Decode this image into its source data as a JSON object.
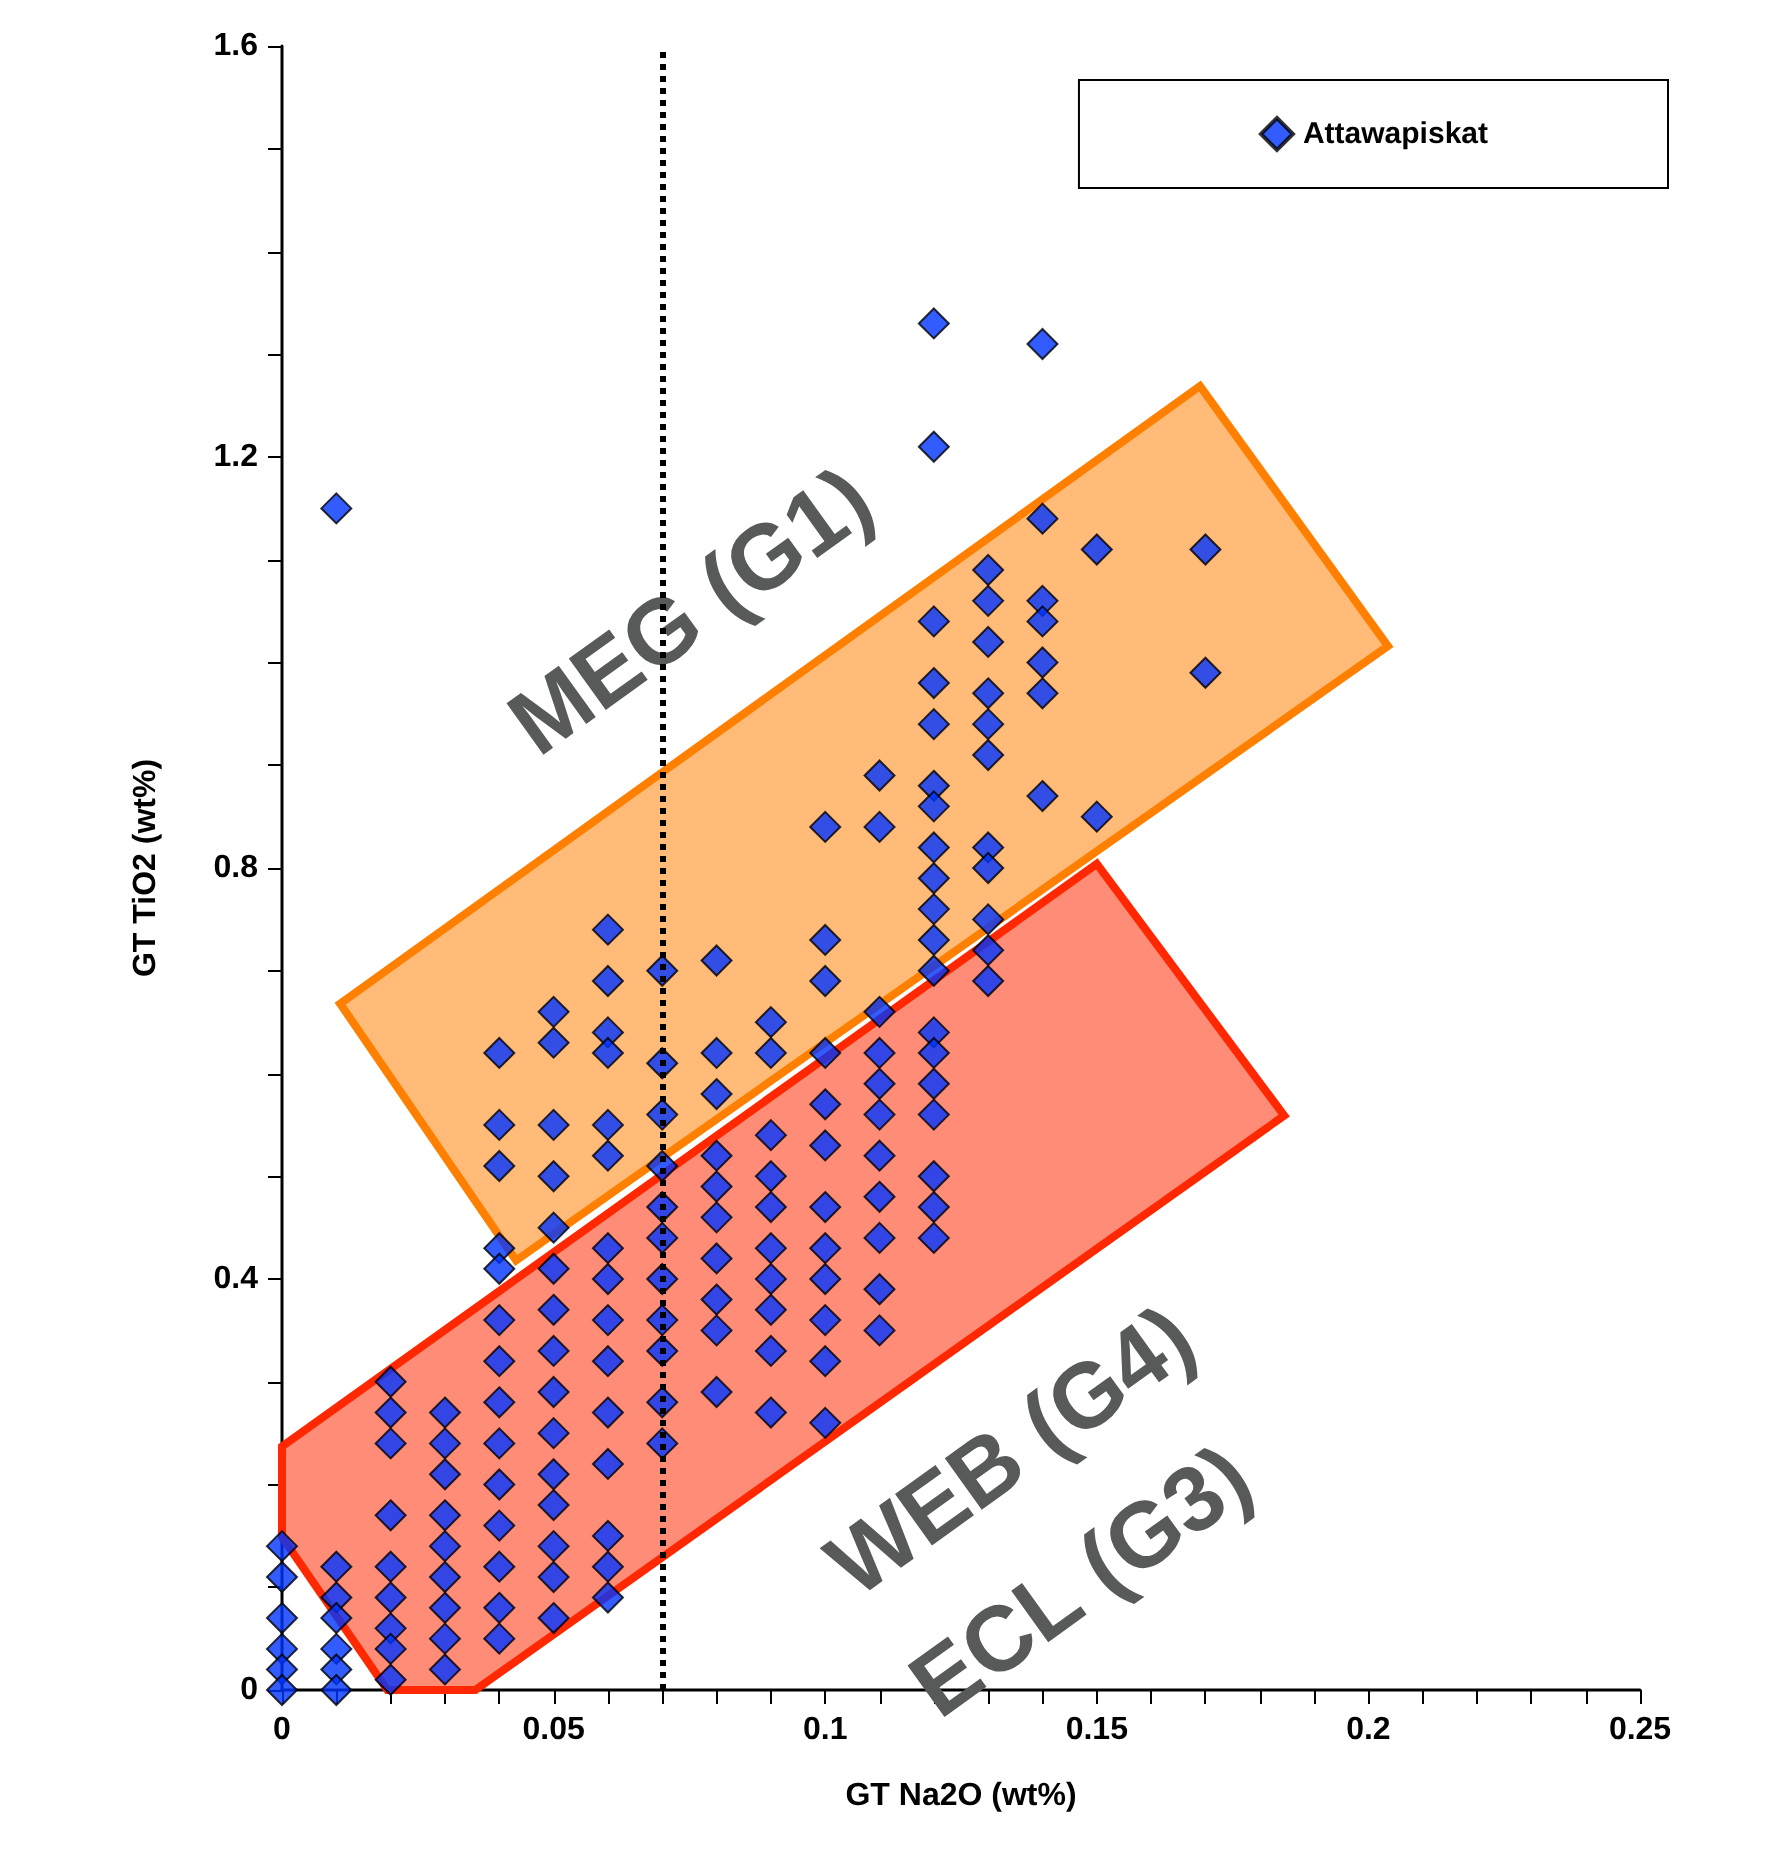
{
  "chart_data": {
    "type": "scatter",
    "xlabel": "GT Na2O (wt%)",
    "ylabel": "GT TiO2 (wt%)",
    "xlim": [
      0,
      0.25
    ],
    "ylim": [
      0,
      1.6
    ],
    "xticks": [
      0,
      {
        "value": 0.01,
        "label": null
      },
      {
        "value": 0.02,
        "label": null
      },
      {
        "value": 0.03,
        "label": null
      },
      {
        "value": 0.04,
        "label": null
      },
      0.05,
      {
        "value": 0.06,
        "label": null
      },
      {
        "value": 0.07,
        "label": null
      },
      {
        "value": 0.08,
        "label": null
      },
      {
        "value": 0.09,
        "label": null
      },
      0.1,
      {
        "value": 0.11,
        "label": null
      },
      {
        "value": 0.12,
        "label": null
      },
      {
        "value": 0.13,
        "label": null
      },
      {
        "value": 0.14,
        "label": null
      },
      0.15,
      {
        "value": 0.16,
        "label": null
      },
      {
        "value": 0.17,
        "label": null
      },
      {
        "value": 0.18,
        "label": null
      },
      {
        "value": 0.19,
        "label": null
      },
      0.2,
      {
        "value": 0.21,
        "label": null
      },
      {
        "value": 0.22,
        "label": null
      },
      {
        "value": 0.23,
        "label": null
      },
      {
        "value": 0.24,
        "label": null
      },
      0.25
    ],
    "yticks": [
      0,
      {
        "value": 0.1,
        "label": null
      },
      {
        "value": 0.2,
        "label": null
      },
      {
        "value": 0.3,
        "label": null
      },
      0.4,
      {
        "value": 0.5,
        "label": null
      },
      {
        "value": 0.6,
        "label": null
      },
      {
        "value": 0.7,
        "label": null
      },
      0.8,
      {
        "value": 0.9,
        "label": null
      },
      {
        "value": 1.0,
        "label": null
      },
      {
        "value": 1.1,
        "label": null
      },
      1.2,
      {
        "value": 1.3,
        "label": null
      },
      {
        "value": 1.4,
        "label": null
      },
      {
        "value": 1.5,
        "label": null
      },
      1.6
    ],
    "grid": false,
    "legend": "top right",
    "ref_lines": [
      {
        "axis": "x",
        "value": 0.07,
        "label": null,
        "color": "#000000",
        "line_style": "dotted"
      }
    ],
    "annotations": [
      "MEG (G1)",
      "WEB (G4)",
      "ECL (G3)"
    ],
    "series": [
      {
        "type": "area",
        "marker": "none",
        "color": "#ff8000",
        "x": [
          0.0107,
          0.169,
          0.2036,
          0.0431
        ],
        "values": [
          0.668,
          1.269,
          1.016,
          0.418
        ]
      },
      {
        "type": "area",
        "marker": "none",
        "color": "#ff2800",
        "x": [
          0,
          0.15,
          0.1845,
          0.0356,
          0.0194,
          0
        ],
        "values": [
          0.237,
          0.804,
          0.559,
          0,
          0,
          0.149
        ]
      },
      {
        "name": "Attawapiskat",
        "marker": "diamond",
        "color": "#0033ff",
        "x": [
          0.01,
          0.12,
          0.12,
          0.14,
          0.15,
          0.14,
          0.14,
          0.14,
          0.14,
          0.14,
          0.14,
          0.15,
          0.17,
          0.17,
          0.13,
          0.13,
          0.13,
          0.13,
          0.13,
          0.13,
          0.13,
          0.13,
          0.13,
          0.13,
          0.13,
          0.12,
          0.12,
          0.12,
          0.12,
          0.12,
          0.12,
          0.12,
          0.12,
          0.12,
          0.12,
          0.12,
          0.12,
          0.12,
          0.12,
          0.12,
          0.12,
          0.12,
          0.11,
          0.11,
          0.11,
          0.11,
          0.11,
          0.11,
          0.11,
          0.11,
          0.11,
          0.11,
          0.11,
          0.1,
          0.1,
          0.1,
          0.1,
          0.1,
          0.1,
          0.1,
          0.1,
          0.1,
          0.1,
          0.1,
          0.1,
          0.09,
          0.09,
          0.09,
          0.09,
          0.09,
          0.09,
          0.09,
          0.09,
          0.09,
          0.09,
          0.08,
          0.08,
          0.08,
          0.08,
          0.08,
          0.08,
          0.08,
          0.08,
          0.08,
          0.08,
          0.07,
          0.07,
          0.07,
          0.07,
          0.07,
          0.07,
          0.07,
          0.07,
          0.07,
          0.07,
          0.07,
          0.06,
          0.06,
          0.06,
          0.06,
          0.06,
          0.06,
          0.06,
          0.06,
          0.06,
          0.06,
          0.06,
          0.06,
          0.06,
          0.06,
          0.06,
          0.05,
          0.05,
          0.05,
          0.05,
          0.05,
          0.05,
          0.05,
          0.05,
          0.05,
          0.05,
          0.05,
          0.05,
          0.05,
          0.05,
          0.05,
          0.04,
          0.04,
          0.04,
          0.04,
          0.04,
          0.04,
          0.04,
          0.04,
          0.04,
          0.04,
          0.04,
          0.04,
          0.04,
          0.04,
          0.03,
          0.03,
          0.03,
          0.03,
          0.03,
          0.03,
          0.03,
          0.03,
          0.03,
          0.02,
          0.02,
          0.02,
          0.02,
          0.02,
          0.02,
          0.02,
          0.02,
          0.02,
          0.01,
          0.01,
          0.01,
          0.01,
          0.01,
          0.01,
          0,
          0,
          0,
          0,
          0,
          0
        ],
        "values": [
          1.15,
          1.33,
          1.21,
          1.31,
          0.85,
          1.14,
          1.06,
          1.04,
          1.0,
          0.97,
          0.87,
          1.11,
          1.11,
          0.99,
          1.09,
          1.06,
          1.02,
          0.97,
          0.94,
          0.91,
          0.82,
          0.8,
          0.75,
          0.72,
          0.69,
          1.04,
          0.98,
          0.94,
          0.88,
          0.86,
          0.82,
          0.79,
          0.76,
          0.73,
          0.7,
          0.64,
          0.62,
          0.59,
          0.56,
          0.5,
          0.47,
          0.44,
          0.89,
          0.84,
          0.66,
          0.62,
          0.59,
          0.56,
          0.52,
          0.48,
          0.44,
          0.39,
          0.35,
          0.84,
          0.73,
          0.69,
          0.62,
          0.57,
          0.53,
          0.47,
          0.43,
          0.4,
          0.36,
          0.32,
          0.26,
          0.65,
          0.62,
          0.54,
          0.5,
          0.47,
          0.43,
          0.4,
          0.37,
          0.33,
          0.27,
          0.71,
          0.62,
          0.58,
          0.52,
          0.49,
          0.46,
          0.42,
          0.38,
          0.35,
          0.29,
          0.7,
          0.61,
          0.56,
          0.51,
          0.47,
          0.44,
          0.4,
          0.36,
          0.33,
          0.28,
          0.24,
          0.74,
          0.69,
          0.64,
          0.62,
          0.55,
          0.52,
          0.43,
          0.4,
          0.36,
          0.32,
          0.27,
          0.22,
          0.15,
          0.12,
          0.09,
          0.66,
          0.63,
          0.55,
          0.5,
          0.45,
          0.41,
          0.37,
          0.33,
          0.29,
          0.25,
          0.21,
          0.18,
          0.14,
          0.11,
          0.07,
          0.62,
          0.55,
          0.51,
          0.43,
          0.41,
          0.36,
          0.32,
          0.28,
          0.24,
          0.2,
          0.16,
          0.12,
          0.08,
          0.05,
          0.27,
          0.24,
          0.21,
          0.17,
          0.14,
          0.11,
          0.08,
          0.05,
          0.02,
          0.3,
          0.27,
          0.24,
          0.17,
          0.12,
          0.09,
          0.06,
          0.04,
          0.01,
          0.12,
          0.09,
          0.07,
          0.04,
          0.02,
          0,
          0.14,
          0.11,
          0.07,
          0.04,
          0.02,
          0
        ]
      }
    ]
  }
}
